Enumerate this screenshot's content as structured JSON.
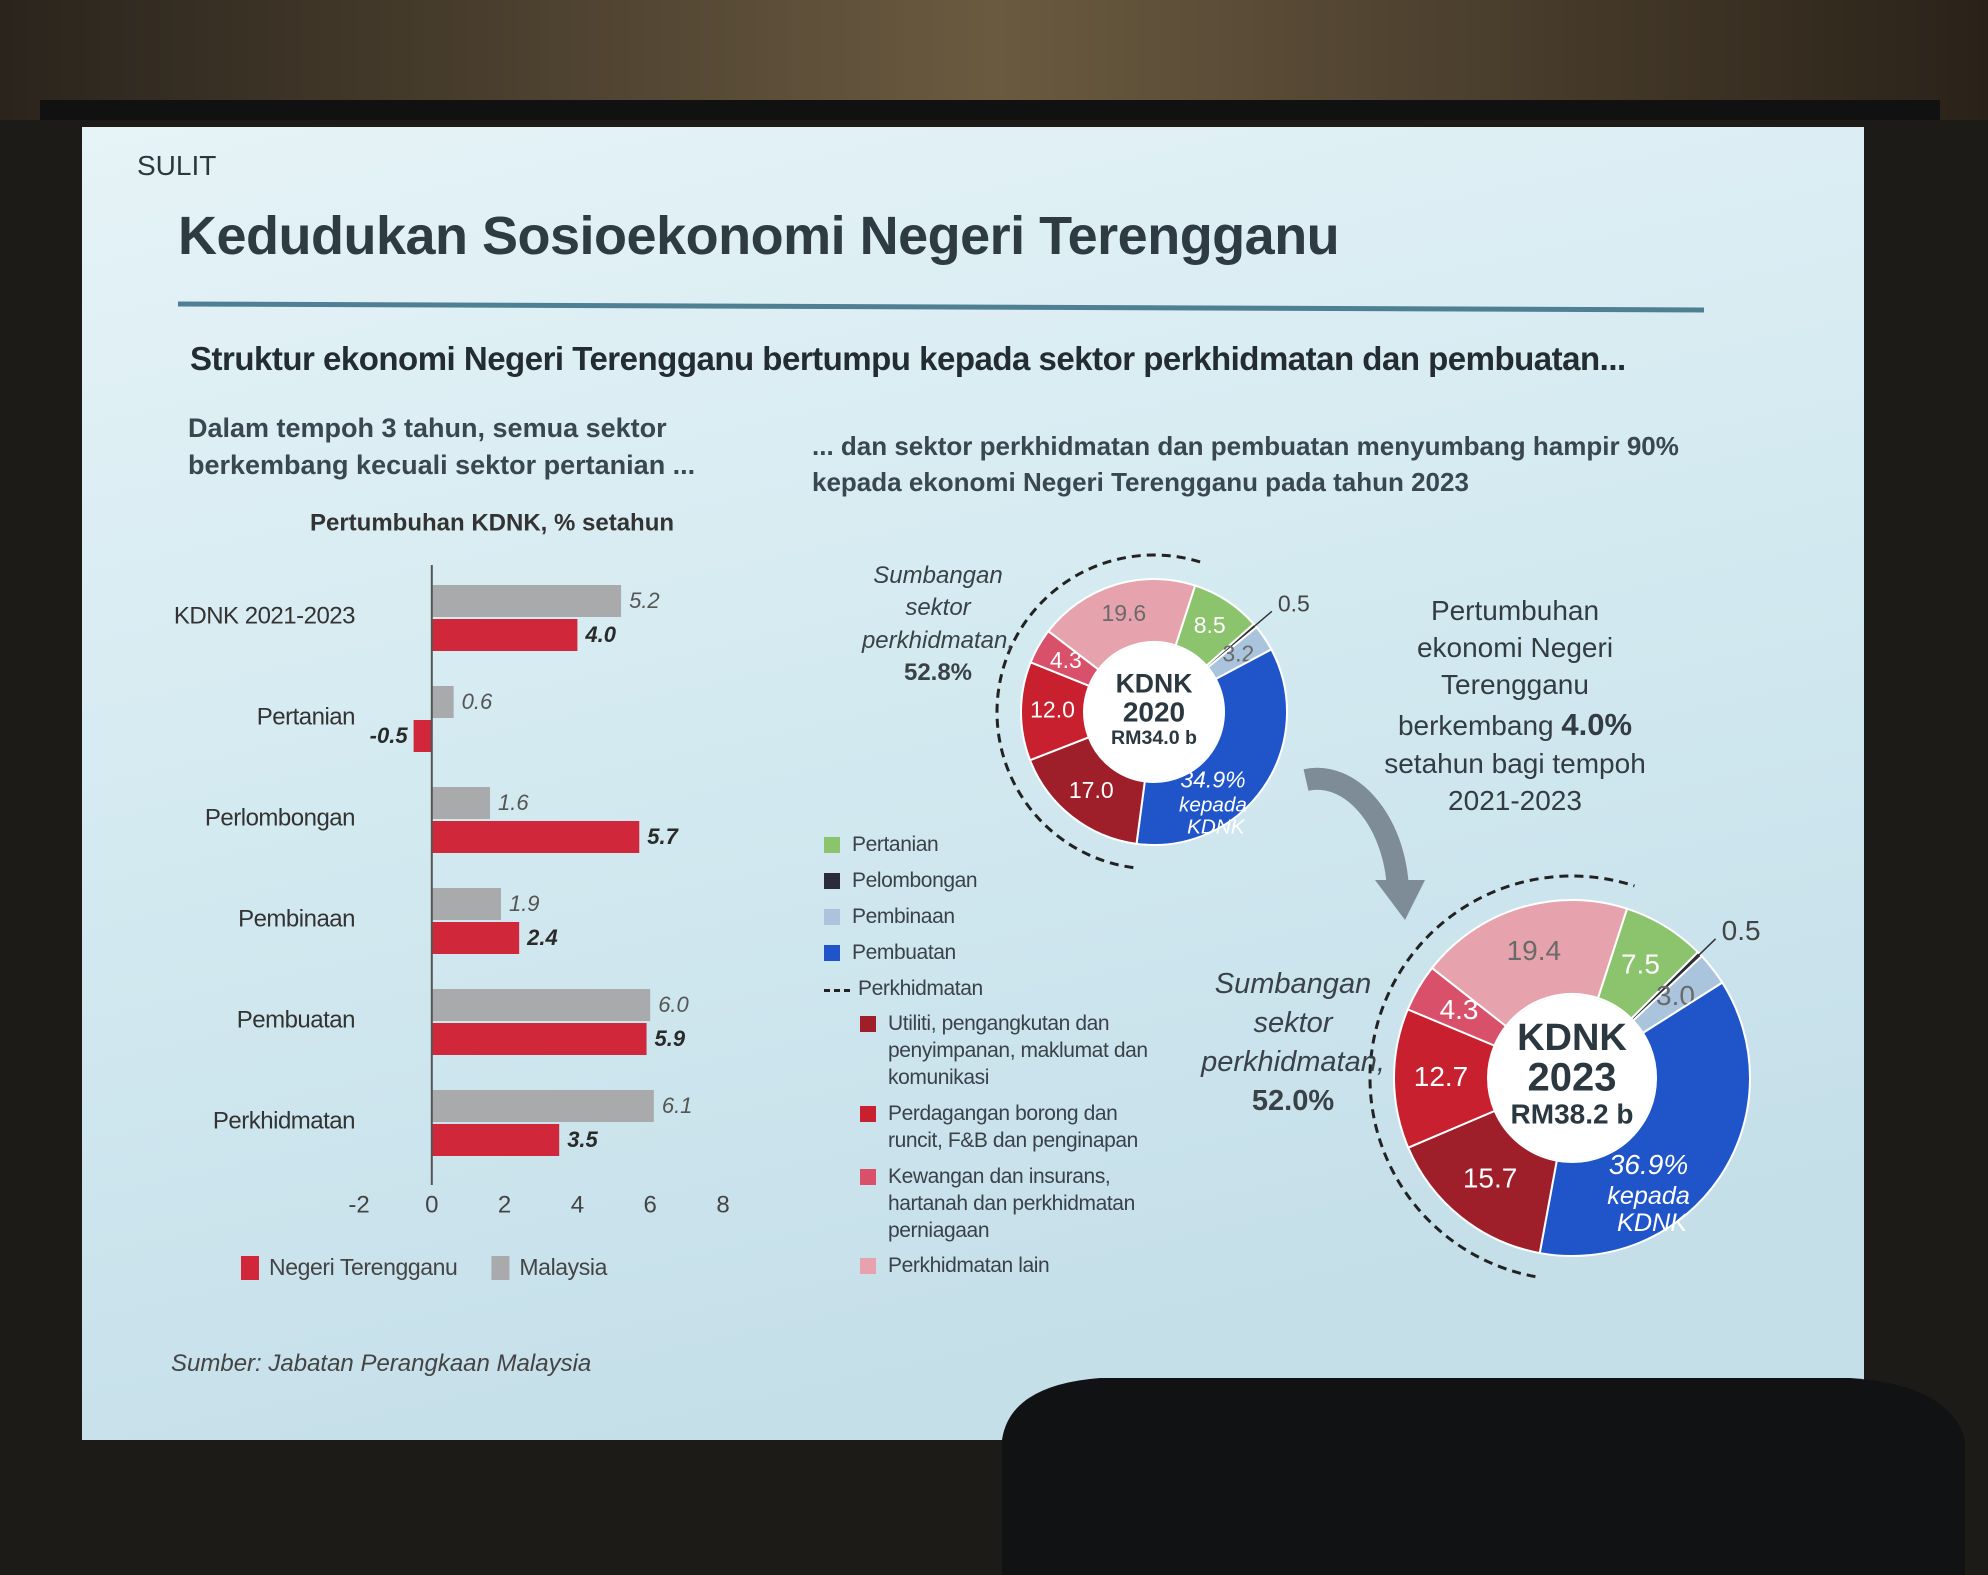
{
  "slide": {
    "marking": "SULIT",
    "title": "Kedudukan Sosioekonomi Negeri Terengganu",
    "subtitle": "Struktur ekonomi Negeri Terengganu bertumpu kepada sektor perkhidmatan dan pembuatan...",
    "left_caption": "Dalam tempoh 3 tahun, semua sektor berkembang kecuali sektor pertanian ...",
    "right_caption": "... dan sektor perkhidmatan dan pembuatan menyumbang hampir 90% kepada ekonomi Negeri Terengganu pada tahun 2023",
    "growth_note_before": "Pertumbuhan ekonomi Negeri Terengganu berkembang",
    "growth_value": "4.0%",
    "growth_note_after": "setahun bagi tempoh 2021-2023",
    "source": "Sumber: Jabatan Perangkaan Malaysia"
  },
  "chart_data": [
    {
      "type": "bar",
      "orientation": "horizontal",
      "title": "Pertumbuhan KDNK, % setahun",
      "categories": [
        "KDNK 2021-2023",
        "Pertanian",
        "Perlombongan",
        "Pembinaan",
        "Pembuatan",
        "Perkhidmatan"
      ],
      "series": [
        {
          "name": "Negeri Terengganu",
          "color": "#d0283a",
          "values": [
            4.0,
            -0.5,
            5.7,
            2.4,
            5.9,
            3.5
          ],
          "value_labels": [
            "4.0",
            "-0.5",
            "5.7",
            "2.4",
            "5.9",
            "3.5"
          ]
        },
        {
          "name": "Malaysia",
          "color": "#a9aaab",
          "values": [
            5.2,
            0.6,
            1.6,
            1.9,
            6.0,
            6.1
          ],
          "value_labels": [
            "5.2",
            "0.6",
            "1.6",
            "1.9",
            "6.0",
            "6.1"
          ]
        }
      ],
      "xlim": [
        -2,
        8
      ],
      "xticks": [
        -2,
        0,
        2,
        4,
        6,
        8
      ],
      "grid": false,
      "legend": "bottom"
    },
    {
      "type": "donut",
      "categories": [
        "Pertanian",
        "Pelombongan",
        "Pembinaan",
        "Pembuatan",
        "Utiliti, pengangkutan dan penyimpanan, maklumat dan komunikasi",
        "Perdagangan borong dan runcit, F&B dan penginapan",
        "Kewangan dan insurans, hartanah dan perkhidmatan perniagaan",
        "Perkhidmatan lain"
      ],
      "colors": [
        "#8cc46e",
        "#2b2b3b",
        "#a9c4dc",
        "#1f55c8",
        "#9e1f2a",
        "#c8202e",
        "#d9506a",
        "#e6a3ad"
      ],
      "group_label": "Perkhidmatan",
      "series": [
        {
          "name": "2020",
          "center_label": "KDNK",
          "total_label": "RM34.0 b",
          "values": [
            8.5,
            0.5,
            3.2,
            34.9,
            17.0,
            12.0,
            4.3,
            19.6
          ],
          "value_labels": [
            "8.5",
            "0.5",
            "3.2",
            "34.9%",
            "17.0",
            "12.0",
            "4.3",
            "19.6"
          ],
          "share_note": "kepada KDNK",
          "annotation": "Sumbangan sektor perkhidmatan,",
          "annotation_value": "52.8%"
        },
        {
          "name": "2023",
          "center_label": "KDNK",
          "total_label": "RM38.2 b",
          "values": [
            7.5,
            0.5,
            3.0,
            36.9,
            15.7,
            12.7,
            4.3,
            19.4
          ],
          "value_labels": [
            "7.5",
            "0.5",
            "3.0",
            "36.9%",
            "15.7",
            "12.7",
            "4.3",
            "19.4"
          ],
          "share_note": "kepada KDNK",
          "annotation": "Sumbangan sektor perkhidmatan,",
          "annotation_value": "52.0%"
        }
      ]
    }
  ]
}
